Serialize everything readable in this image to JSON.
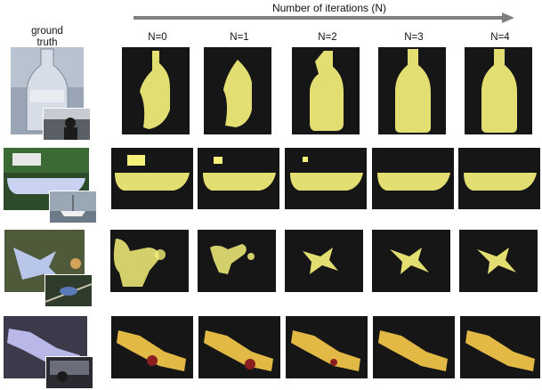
{
  "header": {
    "axis_label": "Number of iterations (N)",
    "gt_label_line1": "ground",
    "gt_label_line2": "truth",
    "columns": [
      "N=0",
      "N=1",
      "N=2",
      "N=3",
      "N=4"
    ]
  },
  "rows": [
    {
      "subject": "bottle"
    },
    {
      "subject": "boat"
    },
    {
      "subject": "bird"
    },
    {
      "subject": "toy-car"
    }
  ],
  "colors": {
    "mask": "#f4f07a",
    "background": "#161616",
    "arrow": "#7f7f7f",
    "inset_border": "#ffffff"
  }
}
